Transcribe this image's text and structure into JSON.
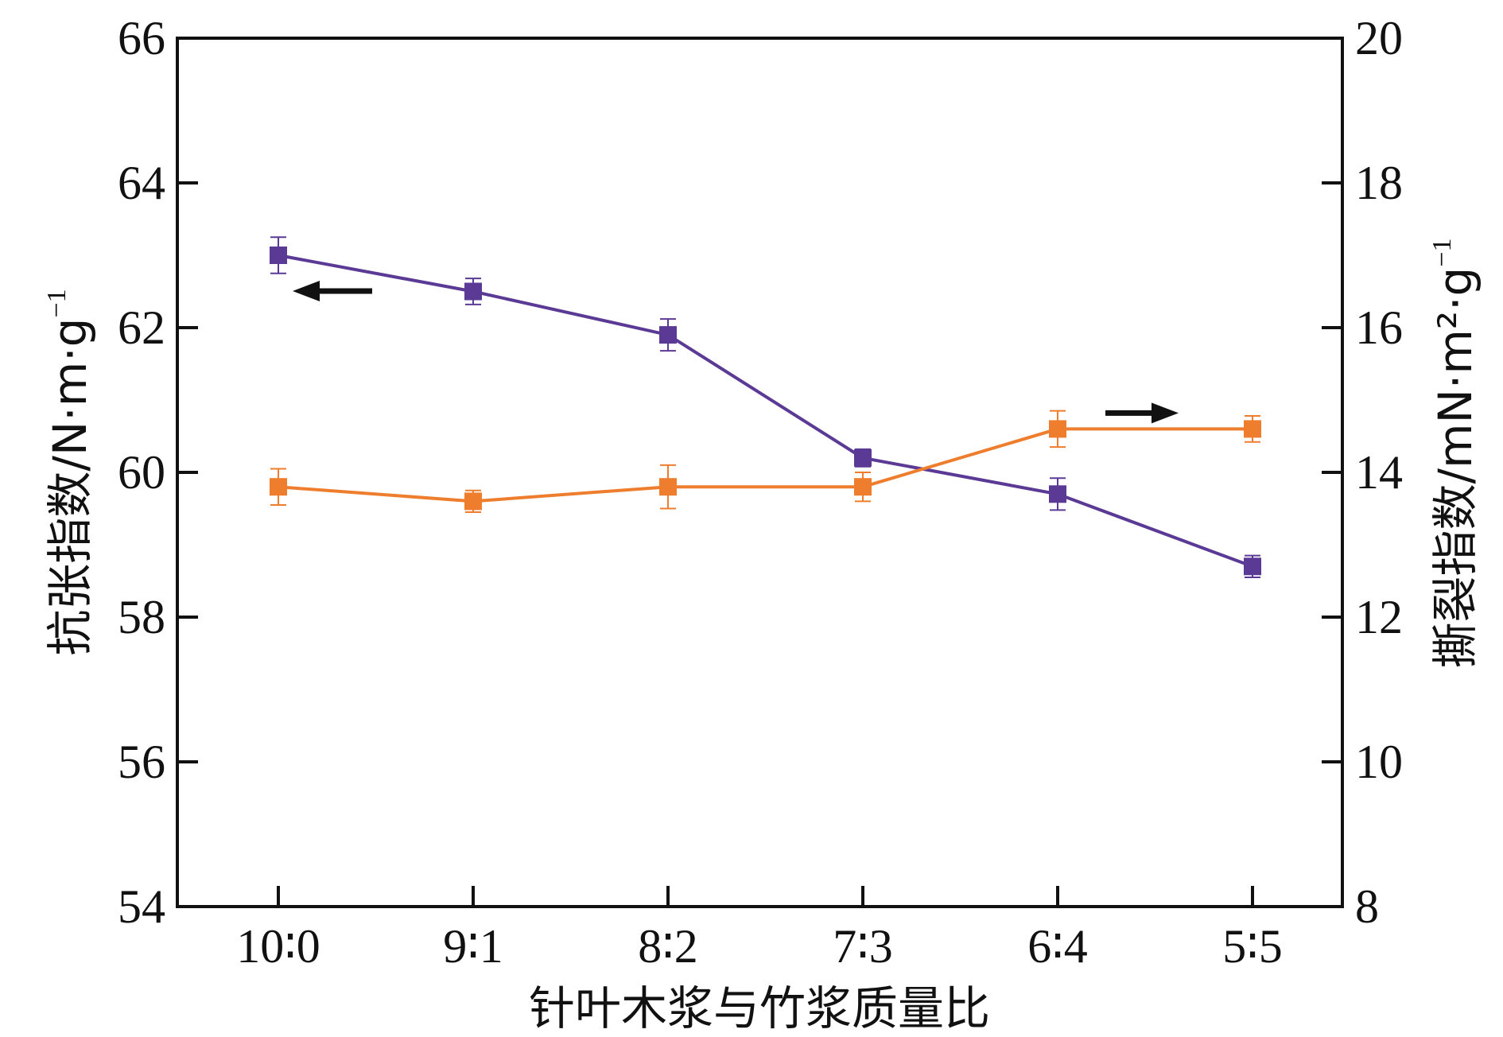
{
  "chart_data": {
    "type": "line",
    "categories": [
      "10∶0",
      "9∶1",
      "8∶2",
      "7∶3",
      "6∶4",
      "5∶5"
    ],
    "xlabel": "针叶木浆与竹浆质量比",
    "ylabel_left": "抗张指数/N·m·g",
    "ylabel_left_sup": "−1",
    "ylabel_right": "撕裂指数/mN·m²·g",
    "ylabel_right_sup": "−1",
    "ylim_left": [
      54,
      66
    ],
    "ylim_right": [
      8,
      20
    ],
    "yticks_left": [
      "54",
      "56",
      "58",
      "60",
      "62",
      "64",
      "66"
    ],
    "yticks_right": [
      "8",
      "10",
      "12",
      "14",
      "16",
      "18",
      "20"
    ],
    "grid": false,
    "series": [
      {
        "axis": "left",
        "color": "#5b3a96",
        "marker": "square",
        "values": [
          63.0,
          62.5,
          61.9,
          60.2,
          59.7,
          58.7
        ],
        "errors": [
          0.25,
          0.18,
          0.22,
          0.12,
          0.22,
          0.15
        ]
      },
      {
        "axis": "right",
        "color": "#ee7d2e",
        "marker": "square",
        "values": [
          13.8,
          13.6,
          13.8,
          13.8,
          14.6,
          14.6
        ],
        "errors": [
          0.25,
          0.15,
          0.3,
          0.2,
          0.25,
          0.18
        ]
      }
    ],
    "annotations": [
      {
        "type": "arrow",
        "direction": "left",
        "points_to": "left-axis",
        "near_series": 0
      },
      {
        "type": "arrow",
        "direction": "right",
        "points_to": "right-axis",
        "near_series": 1
      }
    ]
  }
}
